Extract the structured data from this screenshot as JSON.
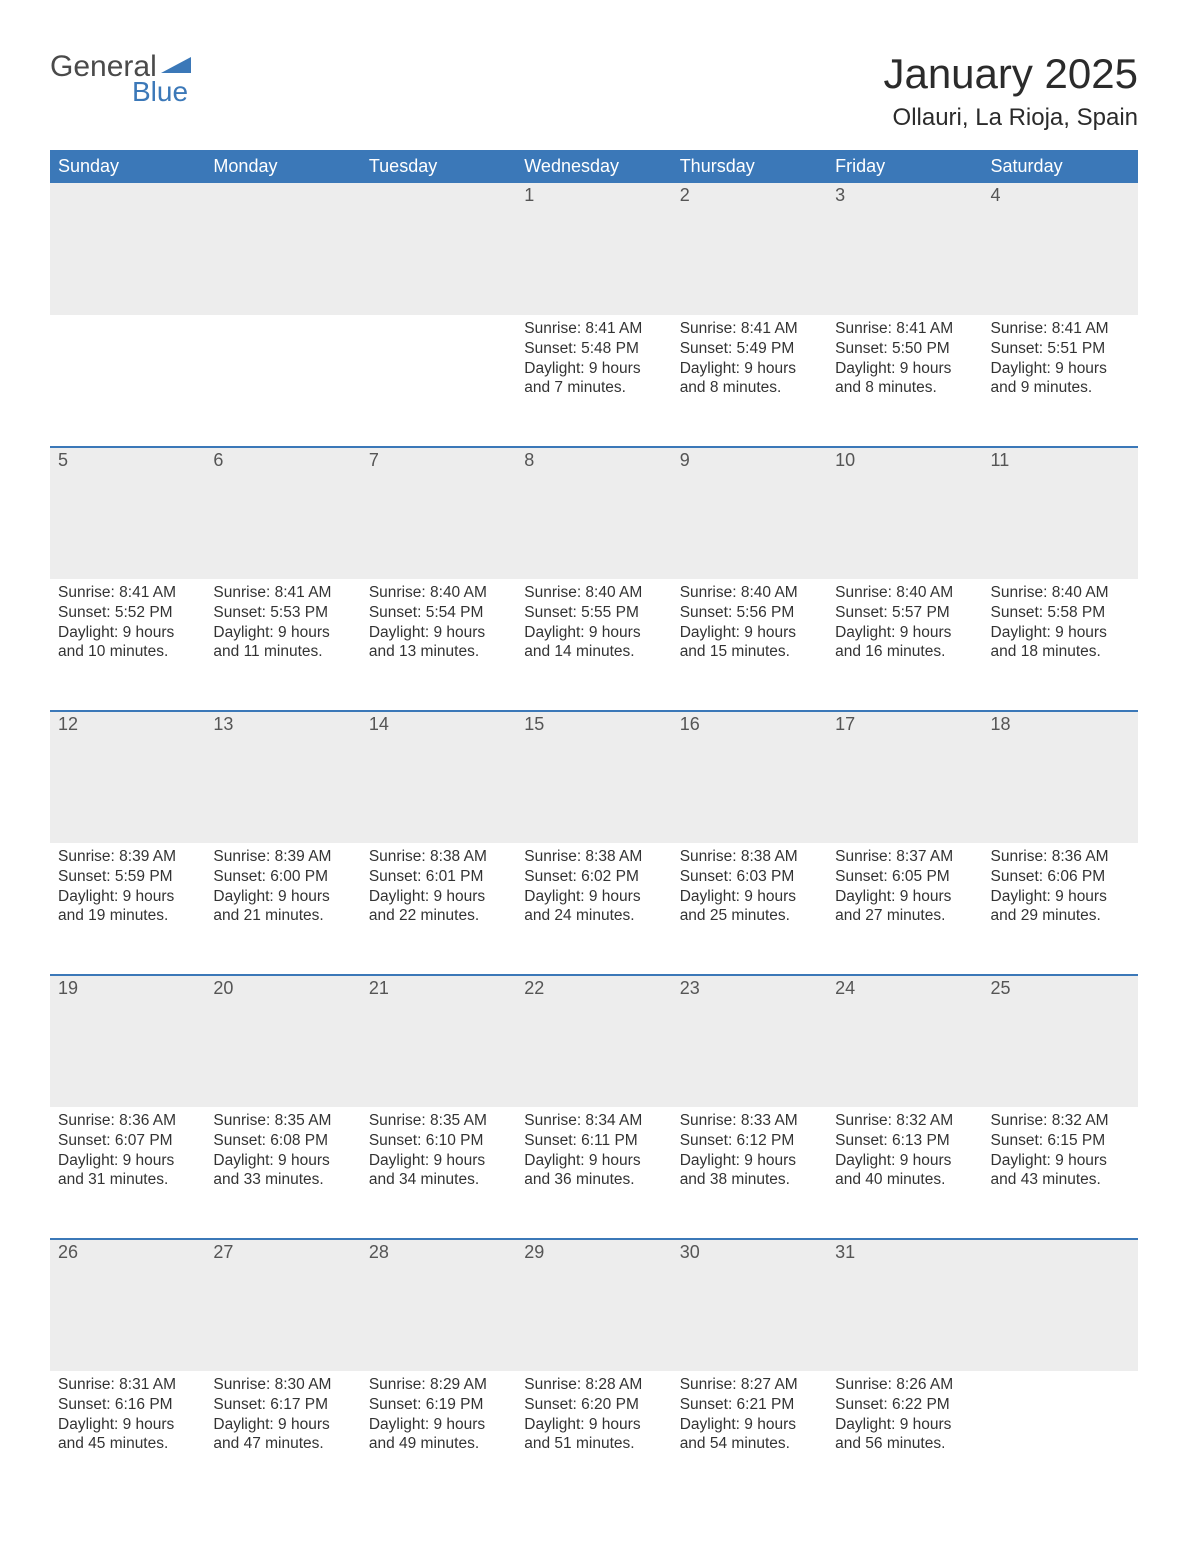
{
  "logo": {
    "text1": "General",
    "text2": "Blue",
    "tri_color": "#3b78b8"
  },
  "header": {
    "title": "January 2025",
    "location": "Ollauri, La Rioja, Spain"
  },
  "colors": {
    "header_bg": "#3b78b8",
    "header_fg": "#ffffff",
    "daynum_bg": "#ededed",
    "row_border": "#3b78b8",
    "text": "#333333",
    "page_bg": "#ffffff"
  },
  "fonts": {
    "title_pt": 42,
    "location_pt": 24,
    "dayhead_pt": 18,
    "body_pt": 15.5
  },
  "day_names": [
    "Sunday",
    "Monday",
    "Tuesday",
    "Wednesday",
    "Thursday",
    "Friday",
    "Saturday"
  ],
  "weeks": [
    [
      null,
      null,
      null,
      {
        "n": "1",
        "sunrise": "8:41 AM",
        "sunset": "5:48 PM",
        "daylight": "9 hours and 7 minutes."
      },
      {
        "n": "2",
        "sunrise": "8:41 AM",
        "sunset": "5:49 PM",
        "daylight": "9 hours and 8 minutes."
      },
      {
        "n": "3",
        "sunrise": "8:41 AM",
        "sunset": "5:50 PM",
        "daylight": "9 hours and 8 minutes."
      },
      {
        "n": "4",
        "sunrise": "8:41 AM",
        "sunset": "5:51 PM",
        "daylight": "9 hours and 9 minutes."
      }
    ],
    [
      {
        "n": "5",
        "sunrise": "8:41 AM",
        "sunset": "5:52 PM",
        "daylight": "9 hours and 10 minutes."
      },
      {
        "n": "6",
        "sunrise": "8:41 AM",
        "sunset": "5:53 PM",
        "daylight": "9 hours and 11 minutes."
      },
      {
        "n": "7",
        "sunrise": "8:40 AM",
        "sunset": "5:54 PM",
        "daylight": "9 hours and 13 minutes."
      },
      {
        "n": "8",
        "sunrise": "8:40 AM",
        "sunset": "5:55 PM",
        "daylight": "9 hours and 14 minutes."
      },
      {
        "n": "9",
        "sunrise": "8:40 AM",
        "sunset": "5:56 PM",
        "daylight": "9 hours and 15 minutes."
      },
      {
        "n": "10",
        "sunrise": "8:40 AM",
        "sunset": "5:57 PM",
        "daylight": "9 hours and 16 minutes."
      },
      {
        "n": "11",
        "sunrise": "8:40 AM",
        "sunset": "5:58 PM",
        "daylight": "9 hours and 18 minutes."
      }
    ],
    [
      {
        "n": "12",
        "sunrise": "8:39 AM",
        "sunset": "5:59 PM",
        "daylight": "9 hours and 19 minutes."
      },
      {
        "n": "13",
        "sunrise": "8:39 AM",
        "sunset": "6:00 PM",
        "daylight": "9 hours and 21 minutes."
      },
      {
        "n": "14",
        "sunrise": "8:38 AM",
        "sunset": "6:01 PM",
        "daylight": "9 hours and 22 minutes."
      },
      {
        "n": "15",
        "sunrise": "8:38 AM",
        "sunset": "6:02 PM",
        "daylight": "9 hours and 24 minutes."
      },
      {
        "n": "16",
        "sunrise": "8:38 AM",
        "sunset": "6:03 PM",
        "daylight": "9 hours and 25 minutes."
      },
      {
        "n": "17",
        "sunrise": "8:37 AM",
        "sunset": "6:05 PM",
        "daylight": "9 hours and 27 minutes."
      },
      {
        "n": "18",
        "sunrise": "8:36 AM",
        "sunset": "6:06 PM",
        "daylight": "9 hours and 29 minutes."
      }
    ],
    [
      {
        "n": "19",
        "sunrise": "8:36 AM",
        "sunset": "6:07 PM",
        "daylight": "9 hours and 31 minutes."
      },
      {
        "n": "20",
        "sunrise": "8:35 AM",
        "sunset": "6:08 PM",
        "daylight": "9 hours and 33 minutes."
      },
      {
        "n": "21",
        "sunrise": "8:35 AM",
        "sunset": "6:10 PM",
        "daylight": "9 hours and 34 minutes."
      },
      {
        "n": "22",
        "sunrise": "8:34 AM",
        "sunset": "6:11 PM",
        "daylight": "9 hours and 36 minutes."
      },
      {
        "n": "23",
        "sunrise": "8:33 AM",
        "sunset": "6:12 PM",
        "daylight": "9 hours and 38 minutes."
      },
      {
        "n": "24",
        "sunrise": "8:32 AM",
        "sunset": "6:13 PM",
        "daylight": "9 hours and 40 minutes."
      },
      {
        "n": "25",
        "sunrise": "8:32 AM",
        "sunset": "6:15 PM",
        "daylight": "9 hours and 43 minutes."
      }
    ],
    [
      {
        "n": "26",
        "sunrise": "8:31 AM",
        "sunset": "6:16 PM",
        "daylight": "9 hours and 45 minutes."
      },
      {
        "n": "27",
        "sunrise": "8:30 AM",
        "sunset": "6:17 PM",
        "daylight": "9 hours and 47 minutes."
      },
      {
        "n": "28",
        "sunrise": "8:29 AM",
        "sunset": "6:19 PM",
        "daylight": "9 hours and 49 minutes."
      },
      {
        "n": "29",
        "sunrise": "8:28 AM",
        "sunset": "6:20 PM",
        "daylight": "9 hours and 51 minutes."
      },
      {
        "n": "30",
        "sunrise": "8:27 AM",
        "sunset": "6:21 PM",
        "daylight": "9 hours and 54 minutes."
      },
      {
        "n": "31",
        "sunrise": "8:26 AM",
        "sunset": "6:22 PM",
        "daylight": "9 hours and 56 minutes."
      },
      null
    ]
  ],
  "labels": {
    "sunrise": "Sunrise: ",
    "sunset": "Sunset: ",
    "daylight": "Daylight: "
  }
}
